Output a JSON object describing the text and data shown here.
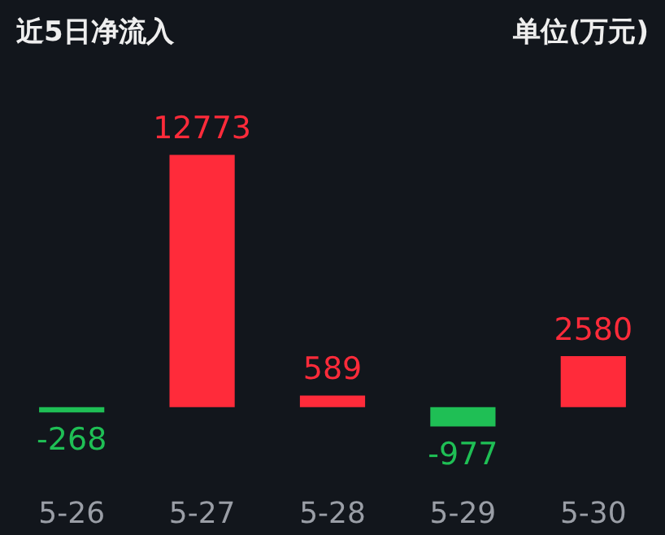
{
  "chart_data": {
    "type": "bar",
    "title": "近5日净流入",
    "annotations": [
      "单位(万元)"
    ],
    "categories": [
      "5-26",
      "5-27",
      "5-28",
      "5-29",
      "5-30"
    ],
    "values": [
      -268,
      12773,
      589,
      -977,
      2580
    ],
    "colors": [
      "#1fbf55",
      "#ff2b3a",
      "#ff2b3a",
      "#1fbf55",
      "#ff2b3a"
    ],
    "data_labels": true
  }
}
